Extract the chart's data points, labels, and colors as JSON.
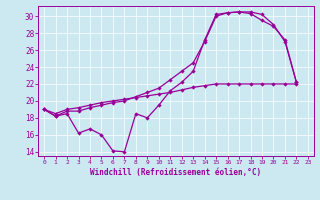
{
  "xlabel": "Windchill (Refroidissement éolien,°C)",
  "bg_color": "#cce8f0",
  "line_color": "#990099",
  "xlim": [
    -0.5,
    23.5
  ],
  "ylim": [
    13.5,
    31.2
  ],
  "yticks": [
    14,
    16,
    18,
    20,
    22,
    24,
    26,
    28,
    30
  ],
  "xticks": [
    0,
    1,
    2,
    3,
    4,
    5,
    6,
    7,
    8,
    9,
    10,
    11,
    12,
    13,
    14,
    15,
    16,
    17,
    18,
    19,
    20,
    21,
    22,
    23
  ],
  "curve1_x": [
    0,
    1,
    2,
    3,
    4,
    5,
    6,
    7,
    8,
    9,
    10,
    11,
    12,
    13,
    14,
    15,
    16,
    17,
    18,
    19,
    20,
    21,
    22
  ],
  "curve1_y": [
    19.0,
    18.2,
    18.5,
    16.2,
    16.7,
    16.0,
    14.1,
    14.0,
    18.5,
    18.0,
    19.5,
    21.2,
    22.2,
    23.5,
    27.2,
    30.2,
    30.4,
    30.5,
    30.5,
    30.2,
    29.0,
    27.0,
    22.2
  ],
  "curve2_x": [
    0,
    1,
    2,
    3,
    4,
    5,
    6,
    7,
    8,
    9,
    10,
    11,
    12,
    13,
    14,
    15,
    16,
    17,
    18,
    19,
    20,
    21,
    22
  ],
  "curve2_y": [
    19.0,
    18.2,
    18.8,
    18.8,
    19.2,
    19.5,
    19.8,
    20.0,
    20.5,
    21.0,
    21.5,
    22.5,
    23.5,
    24.5,
    27.0,
    30.0,
    30.4,
    30.5,
    30.3,
    29.5,
    28.8,
    27.2,
    22.2
  ],
  "curve3_x": [
    0,
    1,
    2,
    3,
    4,
    5,
    6,
    7,
    8,
    9,
    10,
    11,
    12,
    13,
    14,
    15,
    16,
    17,
    18,
    19,
    20,
    21,
    22
  ],
  "curve3_y": [
    19.0,
    18.5,
    19.0,
    19.2,
    19.5,
    19.8,
    20.0,
    20.2,
    20.4,
    20.6,
    20.8,
    21.0,
    21.3,
    21.6,
    21.8,
    22.0,
    22.0,
    22.0,
    22.0,
    22.0,
    22.0,
    22.0,
    22.0
  ]
}
